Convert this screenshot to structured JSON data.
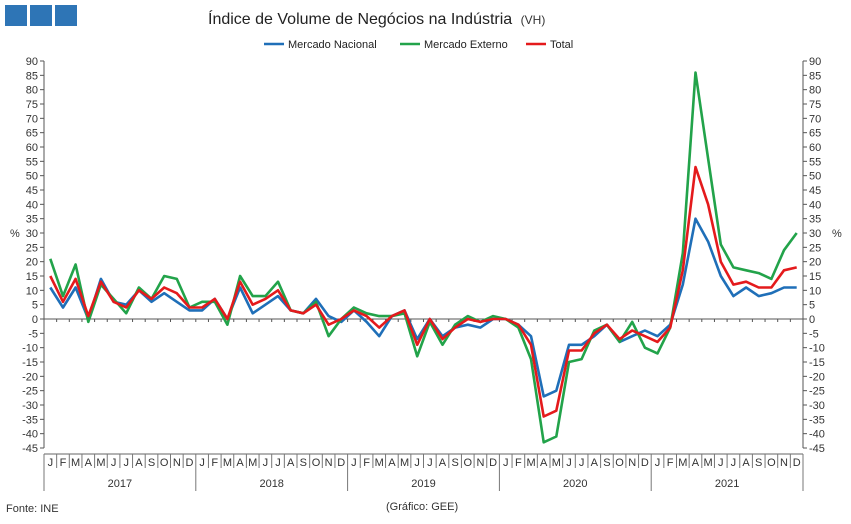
{
  "header": {
    "title": "Índice de Volume de Negócios na Indústria",
    "title_suffix": "(VH)",
    "logo_squares": 3,
    "logo_color": "#2e75b6"
  },
  "footer": {
    "source": "Fonte: INE",
    "credit": "(Gráfico: GEE)"
  },
  "chart_data": {
    "type": "line",
    "ylabel": "%",
    "ylim": [
      -45,
      90
    ],
    "ytick_step": 5,
    "grid": false,
    "legend_position": "top-center",
    "month_labels": [
      "J",
      "F",
      "M",
      "A",
      "M",
      "J",
      "J",
      "A",
      "S",
      "O",
      "N",
      "D"
    ],
    "years": [
      "2017",
      "2018",
      "2019",
      "2020",
      "2021"
    ],
    "series": [
      {
        "name": "Mercado Nacional",
        "color": "#1f6fb8",
        "values": [
          11,
          4,
          11,
          0,
          14,
          6,
          5,
          10,
          6,
          9,
          6,
          3,
          3,
          7,
          0,
          11,
          2,
          5,
          8,
          3,
          2,
          7,
          1,
          -1,
          3,
          -1,
          -6,
          1,
          3,
          -7,
          0,
          -6,
          -3,
          -2,
          -3,
          0,
          0,
          -2,
          -6,
          -27,
          -25,
          -9,
          -9,
          -6,
          -2,
          -8,
          -6,
          -4,
          -6,
          -2,
          12,
          35,
          27,
          15,
          8,
          11,
          8,
          9,
          11,
          11
        ]
      },
      {
        "name": "Mercado Externo",
        "color": "#22a34a",
        "values": [
          21,
          8,
          19,
          -1,
          12,
          7,
          2,
          11,
          7,
          15,
          14,
          4,
          6,
          6,
          -2,
          15,
          8,
          8,
          13,
          3,
          2,
          6,
          -6,
          0,
          4,
          2,
          1,
          1,
          2,
          -13,
          -1,
          -9,
          -2,
          1,
          -1,
          1,
          0,
          -3,
          -14,
          -43,
          -41,
          -15,
          -14,
          -4,
          -2,
          -8,
          -1,
          -10,
          -12,
          -3,
          23,
          86,
          56,
          26,
          18,
          17,
          16,
          14,
          24,
          30
        ]
      },
      {
        "name": "Total",
        "color": "#e41a1c",
        "values": [
          15,
          6,
          14,
          1,
          13,
          6,
          4,
          10,
          7,
          11,
          9,
          4,
          4,
          7,
          0,
          13,
          5,
          7,
          10,
          3,
          2,
          5,
          -2,
          0,
          3,
          1,
          -3,
          1,
          3,
          -9,
          0,
          -7,
          -3,
          0,
          -1,
          0,
          0,
          -2,
          -9,
          -34,
          -32,
          -11,
          -11,
          -5,
          -2,
          -7,
          -4,
          -6,
          -8,
          -3,
          17,
          53,
          40,
          20,
          12,
          13,
          11,
          11,
          17,
          18
        ]
      }
    ]
  }
}
